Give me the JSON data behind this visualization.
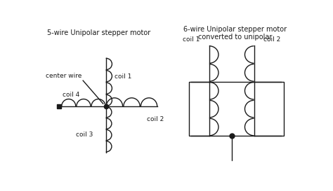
{
  "title_left": "5-wire Unipolar stepper motor",
  "title_right": "6-wire Unipolar stepper motor\nconverted to unipolar",
  "label_coil1_left": "coil 1",
  "label_coil2_left": "coil 2",
  "label_coil3_left": "coil 3",
  "label_coil4_left": "coil 4",
  "label_center": "center wire",
  "label_coil1_right": "coil 1",
  "label_coil2_right": "coil 2",
  "bg_color": "#ffffff",
  "line_color": "#1a1a1a",
  "figsize": [
    4.74,
    2.73
  ],
  "dpi": 100
}
